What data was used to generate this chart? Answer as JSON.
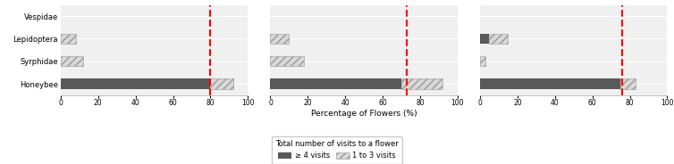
{
  "categories": [
    "Honeybee",
    "Syrphidae",
    "Lepidoptera",
    "Vespidae"
  ],
  "panels": [
    {
      "solid": [
        80,
        0,
        0,
        0
      ],
      "hatched": [
        12,
        12,
        8,
        0
      ],
      "vline": 80
    },
    {
      "solid": [
        70,
        0,
        0,
        0
      ],
      "hatched": [
        22,
        18,
        10,
        0
      ],
      "vline": 73
    },
    {
      "solid": [
        75,
        0,
        5,
        0
      ],
      "hatched": [
        8,
        3,
        10,
        0
      ],
      "vline": 76
    }
  ],
  "xlim": [
    0,
    100
  ],
  "xticks": [
    0,
    20,
    40,
    60,
    80,
    100
  ],
  "xlabel": "Percentage of Flowers (%)",
  "legend_title": "Total number of visits to a flower",
  "legend_solid": "≥ 4 visits",
  "legend_hatched": "1 to 3 visits",
  "solid_color": "#595959",
  "hatched_facecolor": "#d8d8d8",
  "hatch_pattern": "////",
  "vline_color": "red",
  "ax_bg": "#f0f0f0",
  "fig_bg": "#ffffff"
}
